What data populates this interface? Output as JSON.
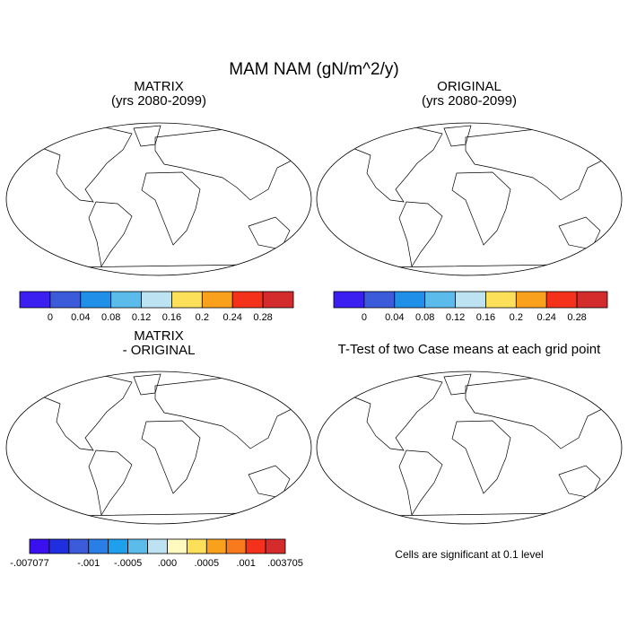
{
  "title": "MAM NAM (gN/m^2/y)",
  "panels": [
    {
      "title": [
        "MATRIX",
        "(yrs 2080-2099)"
      ],
      "style": "blue",
      "colorbar": {
        "colors": [
          "#3a1ff0",
          "#3b5bdb",
          "#1f8fe8",
          "#5bbcec",
          "#bde3f2",
          "#fde05a",
          "#f9a11c",
          "#f4321c",
          "#d42c2c"
        ],
        "labels": [
          "0",
          "0.04",
          "0.08",
          "0.12",
          "0.16",
          "0.2",
          "0.24",
          "0.28"
        ]
      }
    },
    {
      "title": [
        "ORIGINAL",
        "(yrs 2080-2099)"
      ],
      "style": "blue",
      "colorbar": {
        "colors": [
          "#3a1ff0",
          "#3b5bdb",
          "#1f8fe8",
          "#5bbcec",
          "#bde3f2",
          "#fde05a",
          "#f9a11c",
          "#f4321c",
          "#d42c2c"
        ],
        "labels": [
          "0",
          "0.04",
          "0.08",
          "0.12",
          "0.16",
          "0.2",
          "0.24",
          "0.28"
        ]
      }
    },
    {
      "title": [
        "MATRIX",
        "- ORIGINAL"
      ],
      "style": "diff",
      "colorbar": {
        "colors": [
          "#3a0ff0",
          "#1f2fe0",
          "#3b5bdb",
          "#2a7fe6",
          "#1fa0ec",
          "#5bbcec",
          "#bde3f2",
          "#fffac0",
          "#fde05a",
          "#f9a11c",
          "#f97a1c",
          "#f4321c",
          "#d42c2c"
        ],
        "labels": [
          "-.007077",
          "-.001",
          "-.0005",
          ".000",
          ".0005",
          ".001",
          ".003705"
        ]
      }
    },
    {
      "title": [
        "T-Test of two Case means at each grid point"
      ],
      "style": "outline",
      "note": "Cells are significant at 0.1 level"
    }
  ]
}
